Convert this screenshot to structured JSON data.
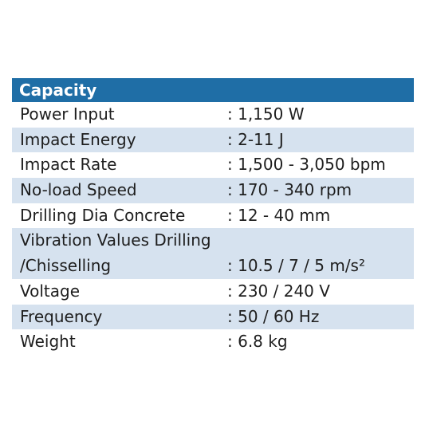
{
  "table": {
    "title": "Capacity",
    "rows": [
      {
        "label": "Power Input",
        "value": ": 1,150 W"
      },
      {
        "label": "Impact Energy",
        "value": ": 2-11 J"
      },
      {
        "label": "Impact Rate",
        "value": ": 1,500 - 3,050 bpm"
      },
      {
        "label": "No-load Speed",
        "value": ": 170 - 340 rpm"
      },
      {
        "label": "Drilling Dia Concrete",
        "value": ": 12 - 40 mm"
      },
      {
        "label": "Vibration Values Drilling",
        "label_continued": "/Chisselling",
        "value": ": 10.5 / 7 / 5 m/s²"
      },
      {
        "label": "Voltage",
        "value": ": 230 / 240 V"
      },
      {
        "label": "Frequency",
        "value": ": 50 / 60 Hz"
      },
      {
        "label": "Weight",
        "value": ": 6.8 kg"
      }
    ]
  }
}
